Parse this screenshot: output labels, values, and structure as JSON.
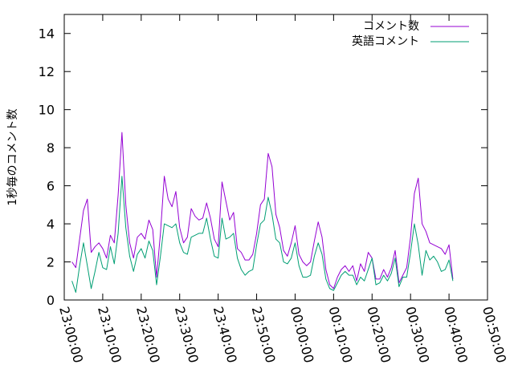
{
  "chart_data": {
    "type": "line",
    "ylabel": "1秒毎のコメント数",
    "ylim": [
      0,
      15
    ],
    "yticks": [
      "0",
      "2",
      "4",
      "6",
      "8",
      "10",
      "12",
      "14"
    ],
    "xticks": [
      "23:00:00",
      "23:10:00",
      "23:20:00",
      "23:30:00",
      "23:40:00",
      "23:50:00",
      "00:00:00",
      "00:10:00",
      "00:20:00",
      "00:30:00",
      "00:40:00",
      "00:50:00"
    ],
    "xrange": [
      "23:00:00",
      "00:50:00"
    ],
    "grid": false,
    "legend": "top-right",
    "series": [
      {
        "name": "コメント数",
        "color": "#9400d3",
        "points": [
          [
            "23:02:00",
            2.0
          ],
          [
            "23:03:00",
            1.7
          ],
          [
            "23:04:00",
            3.2
          ],
          [
            "23:05:00",
            4.7
          ],
          [
            "23:06:00",
            5.3
          ],
          [
            "23:07:00",
            2.5
          ],
          [
            "23:08:00",
            2.8
          ],
          [
            "23:09:00",
            3.0
          ],
          [
            "23:10:00",
            2.7
          ],
          [
            "23:11:00",
            2.2
          ],
          [
            "23:12:00",
            3.4
          ],
          [
            "23:13:00",
            3.0
          ],
          [
            "23:14:00",
            5.5
          ],
          [
            "23:15:00",
            8.8
          ],
          [
            "23:16:00",
            5.0
          ],
          [
            "23:17:00",
            3.0
          ],
          [
            "23:18:00",
            2.2
          ],
          [
            "23:19:00",
            3.3
          ],
          [
            "23:20:00",
            3.5
          ],
          [
            "23:21:00",
            3.2
          ],
          [
            "23:22:00",
            4.2
          ],
          [
            "23:23:00",
            3.7
          ],
          [
            "23:24:00",
            1.2
          ],
          [
            "23:25:00",
            3.5
          ],
          [
            "23:26:00",
            6.5
          ],
          [
            "23:27:00",
            5.3
          ],
          [
            "23:28:00",
            4.9
          ],
          [
            "23:29:00",
            5.7
          ],
          [
            "23:30:00",
            3.8
          ],
          [
            "23:31:00",
            3.0
          ],
          [
            "23:32:00",
            3.3
          ],
          [
            "23:33:00",
            4.8
          ],
          [
            "23:34:00",
            4.4
          ],
          [
            "23:35:00",
            4.2
          ],
          [
            "23:36:00",
            4.3
          ],
          [
            "23:37:00",
            5.1
          ],
          [
            "23:38:00",
            4.3
          ],
          [
            "23:39:00",
            3.2
          ],
          [
            "23:40:00",
            2.8
          ],
          [
            "23:41:00",
            6.2
          ],
          [
            "23:42:00",
            5.2
          ],
          [
            "23:43:00",
            4.2
          ],
          [
            "23:44:00",
            4.6
          ],
          [
            "23:45:00",
            2.7
          ],
          [
            "23:46:00",
            2.5
          ],
          [
            "23:47:00",
            2.1
          ],
          [
            "23:48:00",
            2.1
          ],
          [
            "23:49:00",
            2.4
          ],
          [
            "23:50:00",
            3.5
          ],
          [
            "23:51:00",
            5.0
          ],
          [
            "23:52:00",
            5.3
          ],
          [
            "23:53:00",
            7.7
          ],
          [
            "23:54:00",
            7.0
          ],
          [
            "23:55:00",
            4.5
          ],
          [
            "23:56:00",
            3.8
          ],
          [
            "23:57:00",
            2.6
          ],
          [
            "23:58:00",
            2.3
          ],
          [
            "23:59:00",
            3.0
          ],
          [
            "00:00:00",
            3.9
          ],
          [
            "00:01:00",
            2.4
          ],
          [
            "00:02:00",
            2.0
          ],
          [
            "00:03:00",
            1.8
          ],
          [
            "00:04:00",
            2.0
          ],
          [
            "00:05:00",
            3.1
          ],
          [
            "00:06:00",
            4.1
          ],
          [
            "00:07:00",
            3.3
          ],
          [
            "00:08:00",
            1.6
          ],
          [
            "00:09:00",
            0.8
          ],
          [
            "00:10:00",
            0.6
          ],
          [
            "00:11:00",
            1.2
          ],
          [
            "00:12:00",
            1.6
          ],
          [
            "00:13:00",
            1.8
          ],
          [
            "00:14:00",
            1.5
          ],
          [
            "00:15:00",
            1.8
          ],
          [
            "00:16:00",
            1.0
          ],
          [
            "00:17:00",
            1.9
          ],
          [
            "00:18:00",
            1.5
          ],
          [
            "00:19:00",
            2.5
          ],
          [
            "00:20:00",
            2.2
          ],
          [
            "00:21:00",
            1.1
          ],
          [
            "00:22:00",
            1.1
          ],
          [
            "00:23:00",
            1.6
          ],
          [
            "00:24:00",
            1.2
          ],
          [
            "00:25:00",
            1.7
          ],
          [
            "00:26:00",
            2.6
          ],
          [
            "00:27:00",
            0.9
          ],
          [
            "00:28:00",
            1.3
          ],
          [
            "00:29:00",
            1.7
          ],
          [
            "00:30:00",
            3.3
          ],
          [
            "00:31:00",
            5.6
          ],
          [
            "00:32:00",
            6.4
          ],
          [
            "00:33:00",
            4.0
          ],
          [
            "00:34:00",
            3.6
          ],
          [
            "00:35:00",
            3.0
          ],
          [
            "00:36:00",
            2.9
          ],
          [
            "00:37:00",
            2.8
          ],
          [
            "00:38:00",
            2.7
          ],
          [
            "00:39:00",
            2.4
          ],
          [
            "00:40:00",
            2.9
          ],
          [
            "00:41:00",
            1.1
          ]
        ]
      },
      {
        "name": "英語コメント",
        "color": "#009e73",
        "points": [
          [
            "23:02:00",
            1.0
          ],
          [
            "23:03:00",
            0.4
          ],
          [
            "23:04:00",
            1.8
          ],
          [
            "23:05:00",
            3.0
          ],
          [
            "23:06:00",
            1.8
          ],
          [
            "23:07:00",
            0.6
          ],
          [
            "23:08:00",
            1.5
          ],
          [
            "23:09:00",
            2.5
          ],
          [
            "23:10:00",
            1.7
          ],
          [
            "23:11:00",
            1.6
          ],
          [
            "23:12:00",
            2.8
          ],
          [
            "23:13:00",
            1.9
          ],
          [
            "23:14:00",
            3.5
          ],
          [
            "23:15:00",
            6.5
          ],
          [
            "23:16:00",
            3.8
          ],
          [
            "23:17:00",
            2.3
          ],
          [
            "23:18:00",
            1.5
          ],
          [
            "23:19:00",
            2.4
          ],
          [
            "23:20:00",
            2.7
          ],
          [
            "23:21:00",
            2.2
          ],
          [
            "23:22:00",
            3.1
          ],
          [
            "23:23:00",
            2.6
          ],
          [
            "23:24:00",
            0.8
          ],
          [
            "23:25:00",
            2.3
          ],
          [
            "23:26:00",
            4.0
          ],
          [
            "23:27:00",
            3.9
          ],
          [
            "23:28:00",
            3.8
          ],
          [
            "23:29:00",
            4.0
          ],
          [
            "23:30:00",
            3.0
          ],
          [
            "23:31:00",
            2.5
          ],
          [
            "23:32:00",
            2.4
          ],
          [
            "23:33:00",
            3.3
          ],
          [
            "23:34:00",
            3.4
          ],
          [
            "23:35:00",
            3.5
          ],
          [
            "23:36:00",
            3.5
          ],
          [
            "23:37:00",
            4.3
          ],
          [
            "23:38:00",
            3.2
          ],
          [
            "23:39:00",
            2.3
          ],
          [
            "23:40:00",
            2.2
          ],
          [
            "23:41:00",
            4.3
          ],
          [
            "23:42:00",
            3.2
          ],
          [
            "23:43:00",
            3.3
          ],
          [
            "23:44:00",
            3.5
          ],
          [
            "23:45:00",
            2.2
          ],
          [
            "23:46:00",
            1.6
          ],
          [
            "23:47:00",
            1.3
          ],
          [
            "23:48:00",
            1.5
          ],
          [
            "23:49:00",
            1.6
          ],
          [
            "23:50:00",
            2.9
          ],
          [
            "23:51:00",
            4.0
          ],
          [
            "23:52:00",
            4.2
          ],
          [
            "23:53:00",
            5.4
          ],
          [
            "23:54:00",
            4.5
          ],
          [
            "23:55:00",
            3.2
          ],
          [
            "23:56:00",
            3.0
          ],
          [
            "23:57:00",
            2.0
          ],
          [
            "23:58:00",
            1.9
          ],
          [
            "23:59:00",
            2.2
          ],
          [
            "00:00:00",
            3.0
          ],
          [
            "00:01:00",
            1.8
          ],
          [
            "00:02:00",
            1.2
          ],
          [
            "00:03:00",
            1.2
          ],
          [
            "00:04:00",
            1.3
          ],
          [
            "00:05:00",
            2.3
          ],
          [
            "00:06:00",
            3.0
          ],
          [
            "00:07:00",
            2.4
          ],
          [
            "00:08:00",
            1.1
          ],
          [
            "00:09:00",
            0.6
          ],
          [
            "00:10:00",
            0.5
          ],
          [
            "00:11:00",
            0.9
          ],
          [
            "00:12:00",
            1.3
          ],
          [
            "00:13:00",
            1.5
          ],
          [
            "00:14:00",
            1.3
          ],
          [
            "00:15:00",
            1.3
          ],
          [
            "00:16:00",
            0.8
          ],
          [
            "00:17:00",
            1.2
          ],
          [
            "00:18:00",
            1.0
          ],
          [
            "00:19:00",
            1.6
          ],
          [
            "00:20:00",
            2.2
          ],
          [
            "00:21:00",
            0.8
          ],
          [
            "00:22:00",
            0.9
          ],
          [
            "00:23:00",
            1.3
          ],
          [
            "00:24:00",
            1.0
          ],
          [
            "00:25:00",
            1.4
          ],
          [
            "00:26:00",
            2.2
          ],
          [
            "00:27:00",
            0.7
          ],
          [
            "00:28:00",
            1.2
          ],
          [
            "00:29:00",
            1.2
          ],
          [
            "00:30:00",
            2.5
          ],
          [
            "00:31:00",
            4.0
          ],
          [
            "00:32:00",
            2.9
          ],
          [
            "00:33:00",
            1.3
          ],
          [
            "00:34:00",
            2.6
          ],
          [
            "00:35:00",
            2.1
          ],
          [
            "00:36:00",
            2.3
          ],
          [
            "00:37:00",
            2.0
          ],
          [
            "00:38:00",
            1.5
          ],
          [
            "00:39:00",
            1.6
          ],
          [
            "00:40:00",
            2.1
          ],
          [
            "00:41:00",
            1.0
          ]
        ]
      }
    ]
  }
}
